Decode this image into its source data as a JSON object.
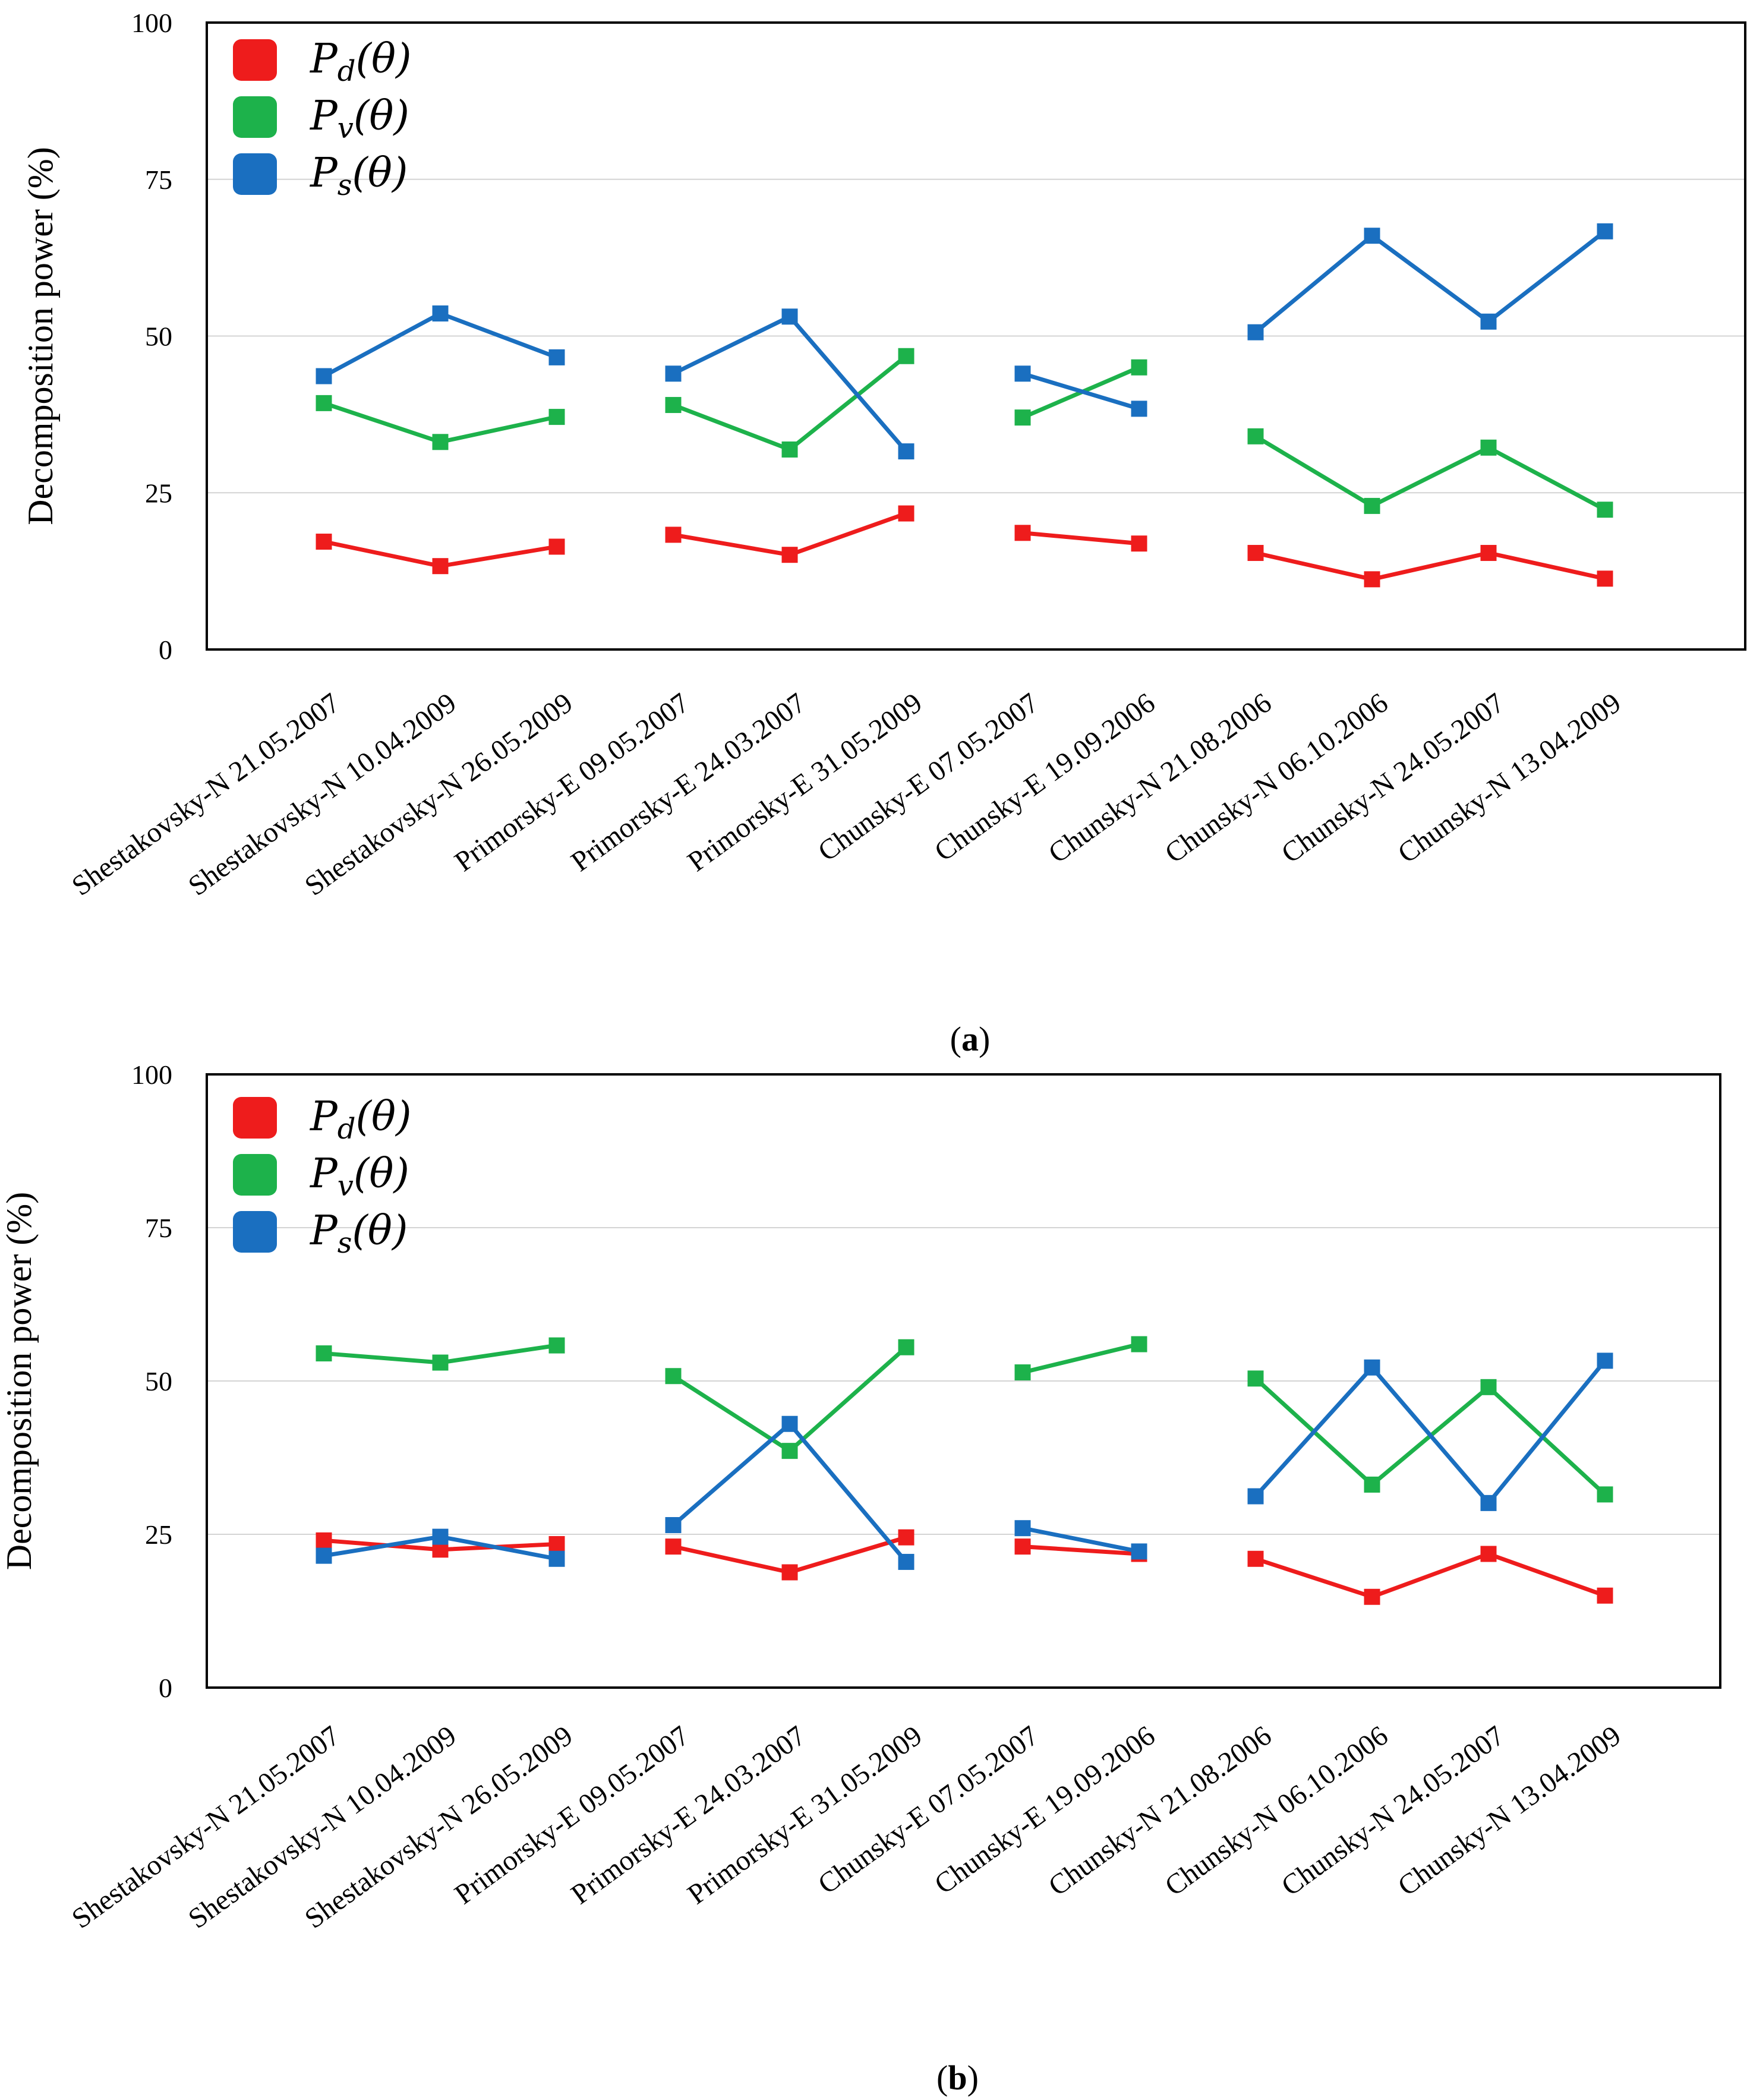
{
  "chart_data": [
    {
      "type": "line",
      "panel_label": "a",
      "ylabel": "Decomposition power (%)",
      "ylim": [
        0,
        100
      ],
      "yticks": [
        0,
        25,
        50,
        75,
        100
      ],
      "grid": "horizontal",
      "legend_placement": "top-left",
      "categories": [
        "Shestakovsky-N  21.05.2007",
        "Shestakovsky-N 10.04.2009",
        "Shestakovsky-N 26.05.2009",
        "Primorsky-E 09.05.2007",
        "Primorsky-E 24.03.2007",
        "Primorsky-E 31.05.2009",
        "Chunsky-E 07.05.2007",
        "Chunsky-E 19.09.2006",
        "Chunsky-N 21.08.2006",
        "Chunsky-N 06.10.2006",
        "Chunsky-N 24.05.2007",
        "Chunsky-N 13.04.2009"
      ],
      "segments": [
        [
          0,
          2
        ],
        [
          3,
          5
        ],
        [
          6,
          7
        ],
        [
          8,
          11
        ]
      ],
      "series": [
        {
          "name": "P",
          "subscript": "d",
          "argument": "(θ)",
          "color": "#ee1c1c",
          "values": [
            17.2,
            13.3,
            16.4,
            18.3,
            15.1,
            21.7,
            18.6,
            16.9,
            15.4,
            11.2,
            15.4,
            11.3
          ]
        },
        {
          "name": "P",
          "subscript": "v",
          "argument": "(θ)",
          "color": "#1db24b",
          "values": [
            39.3,
            33.1,
            37.1,
            39.0,
            31.9,
            46.8,
            37.0,
            45.0,
            34.0,
            22.9,
            32.2,
            22.3
          ]
        },
        {
          "name": "P",
          "subscript": "s",
          "argument": "(θ)",
          "color": "#1a6fc0",
          "values": [
            43.6,
            53.6,
            46.6,
            44.0,
            53.1,
            31.6,
            44.0,
            38.4,
            50.6,
            66.0,
            52.3,
            66.7
          ]
        }
      ]
    },
    {
      "type": "line",
      "panel_label": "b",
      "ylabel": "Decomposition power (%)",
      "ylim": [
        0,
        100
      ],
      "yticks": [
        0,
        25,
        50,
        75,
        100
      ],
      "grid": "horizontal",
      "legend_placement": "top-left",
      "categories": [
        "Shestakovsky-N  21.05.2007",
        "Shestakovsky-N 10.04.2009",
        "Shestakovsky-N 26.05.2009",
        "Primorsky-E 09.05.2007",
        "Primorsky-E 24.03.2007",
        "Primorsky-E 31.05.2009",
        "Chunsky-E 07.05.2007",
        "Chunsky-E 19.09.2006",
        "Chunsky-N 21.08.2006",
        "Chunsky-N 06.10.2006",
        "Chunsky-N 24.05.2007",
        "Chunsky-N 13.04.2009"
      ],
      "segments": [
        [
          0,
          2
        ],
        [
          3,
          5
        ],
        [
          6,
          7
        ],
        [
          8,
          11
        ]
      ],
      "series": [
        {
          "name": "P",
          "subscript": "d",
          "argument": "(θ)",
          "color": "#ee1c1c",
          "values": [
            24.0,
            22.5,
            23.4,
            23.0,
            18.8,
            24.5,
            23.0,
            21.8,
            21.0,
            14.8,
            21.8,
            15.0
          ]
        },
        {
          "name": "P",
          "subscript": "v",
          "argument": "(θ)",
          "color": "#1db24b",
          "values": [
            54.5,
            53.0,
            55.8,
            50.8,
            38.6,
            55.5,
            51.4,
            56.0,
            50.4,
            33.1,
            49.0,
            31.5
          ]
        },
        {
          "name": "P",
          "subscript": "s",
          "argument": "(θ)",
          "color": "#1a6fc0",
          "values": [
            21.5,
            24.6,
            21.0,
            26.5,
            43.0,
            20.5,
            26.0,
            22.2,
            31.2,
            52.2,
            30.1,
            53.3
          ]
        }
      ]
    }
  ]
}
